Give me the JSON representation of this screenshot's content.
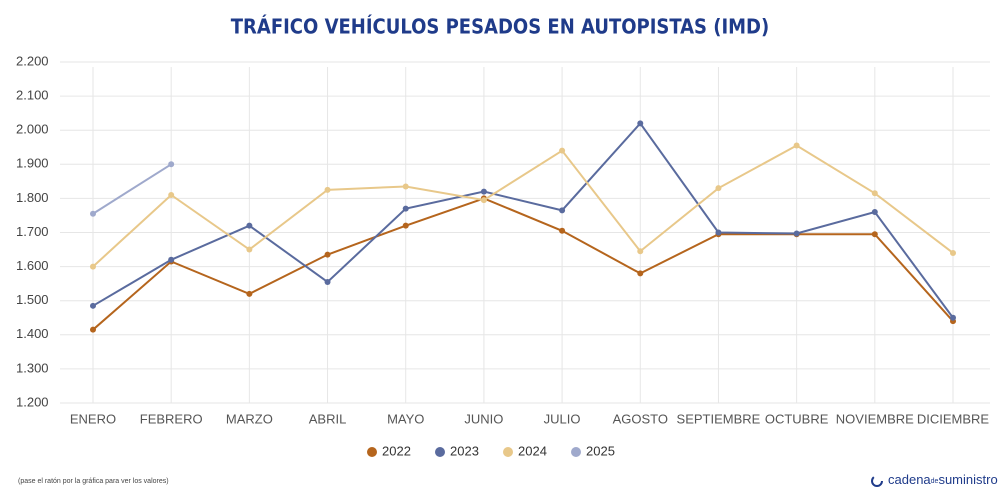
{
  "chart_data": {
    "type": "line",
    "title": "TRÁFICO VEHÍCULOS PESADOS EN AUTOPISTAS (IMD)",
    "categories": [
      "ENERO",
      "FEBRERO",
      "MARZO",
      "ABRIL",
      "MAYO",
      "JUNIO",
      "JULIO",
      "AGOSTO",
      "SEPTIEMBRE",
      "OCTUBRE",
      "NOVIEMBRE",
      "DICIEMBRE"
    ],
    "series": [
      {
        "name": "2022",
        "color": "#b5651d",
        "values": [
          1415,
          1615,
          1520,
          1635,
          1720,
          1800,
          1705,
          1580,
          1695,
          1695,
          1695,
          1440
        ]
      },
      {
        "name": "2023",
        "color": "#5a6b9e",
        "values": [
          1485,
          1620,
          1720,
          1555,
          1770,
          1820,
          1765,
          2020,
          1700,
          1697,
          1760,
          1450
        ]
      },
      {
        "name": "2024",
        "color": "#e8c88a",
        "values": [
          1600,
          1810,
          1650,
          1825,
          1835,
          1795,
          1940,
          1645,
          1830,
          1955,
          1815,
          1640
        ]
      },
      {
        "name": "2025",
        "color": "#9fa9cc",
        "values": [
          1755,
          1900,
          null,
          null,
          null,
          null,
          null,
          null,
          null,
          null,
          null,
          null
        ]
      }
    ],
    "ylim": [
      1200,
      2200
    ],
    "yticks": [
      {
        "value": 1200,
        "label": "1.200"
      },
      {
        "value": 1300,
        "label": "1.300"
      },
      {
        "value": 1400,
        "label": "1.400"
      },
      {
        "value": 1500,
        "label": "1.500"
      },
      {
        "value": 1600,
        "label": "1.600"
      },
      {
        "value": 1700,
        "label": "1.700"
      },
      {
        "value": 1800,
        "label": "1.800"
      },
      {
        "value": 1900,
        "label": "1.900"
      },
      {
        "value": 2000,
        "label": "2.000"
      },
      {
        "value": 2100,
        "label": "2.100"
      },
      {
        "value": 2200,
        "label": "2.200"
      }
    ],
    "grid": true,
    "legend": "bottom",
    "note": "(pase el ratón por la gráfica para ver los valores)",
    "logo": {
      "main": "cadena",
      "small": "de",
      "end": "suministro"
    }
  }
}
